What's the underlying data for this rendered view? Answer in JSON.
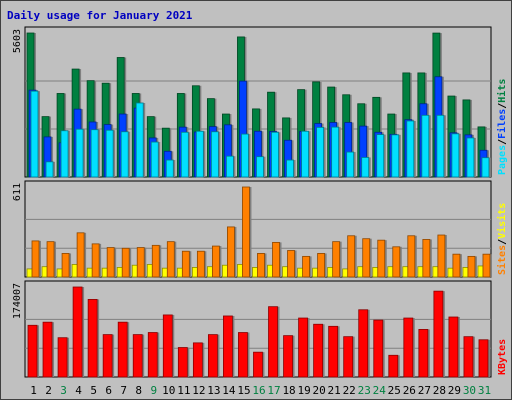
{
  "title": "Daily usage for January 2021",
  "colors": {
    "background": "#c0c0c0",
    "panel": "#c0c0c0",
    "title": "#0000c0",
    "hits": "#008040",
    "files": "#0040ff",
    "pages": "#00e0ff",
    "visits": "#ffff00",
    "sites": "#ff8000",
    "kbytes": "#ff0000",
    "weekday_label": "#000000",
    "weekend_label": "#008040"
  },
  "chart_data": [
    {
      "type": "bar",
      "panel": "hits-files-pages",
      "axis_max_label": "5603",
      "ylim": [
        0,
        5603
      ],
      "categories": [
        "1",
        "2",
        "3",
        "4",
        "5",
        "6",
        "7",
        "8",
        "9",
        "10",
        "11",
        "12",
        "13",
        "14",
        "15",
        "16",
        "17",
        "18",
        "19",
        "20",
        "21",
        "22",
        "23",
        "24",
        "25",
        "26",
        "27",
        "28",
        "29",
        "30",
        "31"
      ],
      "weekend_days": [
        "3",
        "9",
        "16",
        "17",
        "23",
        "24",
        "30",
        "31"
      ],
      "legend": [
        {
          "label": "Pages",
          "key": "pages"
        },
        {
          "label": "/",
          "key": "sep"
        },
        {
          "label": "Files",
          "key": "files"
        },
        {
          "label": "/",
          "key": "sep"
        },
        {
          "label": "Hits",
          "key": "hits"
        }
      ],
      "series": [
        {
          "name": "Hits",
          "key": "hits",
          "values": [
            5603,
            2350,
            3250,
            4200,
            3750,
            3650,
            4650,
            3250,
            2350,
            1900,
            3250,
            3550,
            3050,
            2450,
            5450,
            2650,
            3300,
            2300,
            3400,
            3700,
            3500,
            3200,
            2850,
            3100,
            2450,
            4050,
            4050,
            5600,
            3150,
            3000,
            1950
          ]
        },
        {
          "name": "Files",
          "key": "files",
          "values": [
            3380,
            1560,
            1330,
            2640,
            2140,
            2040,
            2450,
            2680,
            1520,
            1000,
            1940,
            1750,
            1960,
            2030,
            3730,
            1780,
            1770,
            1430,
            1770,
            2080,
            2120,
            2120,
            1980,
            1740,
            1660,
            2230,
            2850,
            3900,
            1720,
            1640,
            1040
          ]
        },
        {
          "name": "Pages",
          "key": "pages",
          "values": [
            3340,
            590,
            1800,
            1860,
            1840,
            1820,
            1760,
            2880,
            1360,
            660,
            1740,
            1780,
            1760,
            810,
            1670,
            790,
            1740,
            660,
            1780,
            1930,
            1940,
            970,
            760,
            1650,
            1640,
            2180,
            2400,
            2400,
            1680,
            1520,
            750
          ]
        }
      ]
    },
    {
      "type": "bar",
      "panel": "visits-sites",
      "axis_max_label": "611",
      "ylim": [
        0,
        611
      ],
      "legend": [
        {
          "label": "Sites",
          "key": "sites"
        },
        {
          "label": "/",
          "key": "sep"
        },
        {
          "label": "Visits",
          "key": "visits"
        }
      ],
      "series": [
        {
          "name": "Visits",
          "key": "visits",
          "values": [
            55,
            70,
            55,
            85,
            60,
            60,
            65,
            80,
            85,
            60,
            60,
            65,
            70,
            80,
            85,
            65,
            80,
            70,
            60,
            60,
            65,
            55,
            70,
            65,
            70,
            70,
            70,
            70,
            60,
            65,
            75
          ]
        },
        {
          "name": "Sites",
          "key": "sites",
          "values": [
            245,
            240,
            160,
            300,
            225,
            200,
            195,
            200,
            215,
            240,
            175,
            175,
            210,
            340,
            611,
            160,
            235,
            180,
            140,
            160,
            240,
            280,
            260,
            250,
            205,
            280,
            255,
            285,
            155,
            140,
            155
          ]
        }
      ]
    },
    {
      "type": "bar",
      "panel": "kbytes",
      "axis_max_label": "174007",
      "ylim": [
        0,
        174007
      ],
      "legend": [
        {
          "label": "KBytes",
          "key": "kbytes"
        }
      ],
      "series": [
        {
          "name": "KBytes",
          "key": "kbytes",
          "values": [
            100000,
            106000,
            76000,
            174007,
            150000,
            82000,
            106000,
            82000,
            86000,
            120000,
            57000,
            66000,
            82000,
            118000,
            86000,
            48000,
            136000,
            80000,
            114000,
            102000,
            98000,
            78000,
            130000,
            110000,
            42000,
            114000,
            92000,
            166000,
            116000,
            78000,
            72000
          ]
        }
      ]
    }
  ]
}
